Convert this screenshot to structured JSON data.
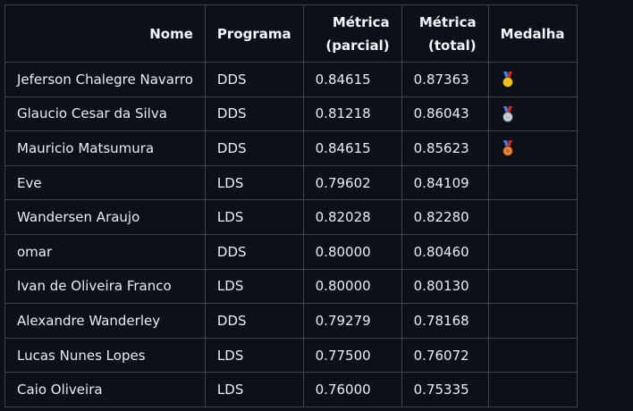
{
  "table": {
    "headers": {
      "nome": "Nome",
      "programa": "Programa",
      "parcial_line1": "Métrica",
      "parcial_line2": "(parcial)",
      "total_line1": "Métrica",
      "total_line2": "(total)",
      "medalha": "Medalha"
    },
    "rows": [
      {
        "nome": "Jeferson Chalegre Navarro",
        "programa": "DDS",
        "parcial": "0.84615",
        "total": "0.87363",
        "medal": "gold-medal-icon"
      },
      {
        "nome": "Glaucio Cesar da Silva",
        "programa": "DDS",
        "parcial": "0.81218",
        "total": "0.86043",
        "medal": "silver-medal-icon"
      },
      {
        "nome": "Mauricio Matsumura",
        "programa": "DDS",
        "parcial": "0.84615",
        "total": "0.85623",
        "medal": "bronze-medal-icon"
      },
      {
        "nome": "Eve",
        "programa": "LDS",
        "parcial": "0.79602",
        "total": "0.84109",
        "medal": ""
      },
      {
        "nome": "Wandersen Araujo",
        "programa": "LDS",
        "parcial": "0.82028",
        "total": "0.82280",
        "medal": ""
      },
      {
        "nome": "omar",
        "programa": "DDS",
        "parcial": "0.80000",
        "total": "0.80460",
        "medal": ""
      },
      {
        "nome": "Ivan de Oliveira Franco",
        "programa": "LDS",
        "parcial": "0.80000",
        "total": "0.80130",
        "medal": ""
      },
      {
        "nome": "Alexandre Wanderley",
        "programa": "DDS",
        "parcial": "0.79279",
        "total": "0.78168",
        "medal": ""
      },
      {
        "nome": "Lucas Nunes Lopes",
        "programa": "LDS",
        "parcial": "0.77500",
        "total": "0.76072",
        "medal": ""
      },
      {
        "nome": "Caio Oliveira",
        "programa": "LDS",
        "parcial": "0.76000",
        "total": "0.75335",
        "medal": ""
      }
    ]
  },
  "colors": {
    "background": "#0d1117",
    "border": "#3d444d",
    "text": "#e6edf3",
    "gold": "#f2b500",
    "silver": "#b8c2cc",
    "bronze": "#d2691e"
  }
}
